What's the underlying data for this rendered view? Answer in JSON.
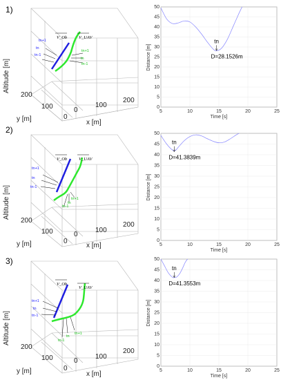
{
  "panel_labels": [
    "1)",
    "2)",
    "3)"
  ],
  "plot3d": {
    "zlabel": "Altitude [m]",
    "ylabel": "y [m]",
    "xlabel": "x [m]",
    "y_ticks": [
      "200",
      "100",
      "0"
    ],
    "x_ticks": [
      "0",
      "100",
      "200"
    ],
    "vec_ob": "V_Ob",
    "vec_uav": "V_UAV",
    "ob_labels": [
      "tn+1",
      "tn",
      "tn-1"
    ],
    "uav_labels": [
      "tn+1",
      "tn",
      "tn-1"
    ],
    "colors": {
      "obstacle": "#1f1fe0",
      "uav": "#2ee82e"
    }
  },
  "chart_data": [
    {
      "type": "line",
      "xlabel": "Time [s]",
      "ylabel": "Distance [m]",
      "xlim": [
        5,
        25
      ],
      "ylim": [
        0,
        50
      ],
      "xticks": [
        5,
        10,
        15,
        20,
        25
      ],
      "yticks": [
        0,
        5,
        10,
        15,
        20,
        25,
        30,
        35,
        40,
        45,
        50
      ],
      "x": [
        5,
        6,
        7,
        8,
        9,
        10,
        11,
        12,
        13,
        14,
        14.6,
        15.5,
        16.5,
        17.5,
        18.5,
        19
      ],
      "y": [
        49.5,
        44,
        41.7,
        42,
        43,
        42.5,
        40,
        36.5,
        32.5,
        29,
        28.15,
        29.5,
        34,
        40.5,
        47,
        50
      ],
      "annotation": {
        "marker": "tn",
        "text": "D=28.1526m",
        "x": 14.6,
        "y": 28.1526
      },
      "color": "#8585ff"
    },
    {
      "type": "line",
      "xlabel": "Time [s]",
      "ylabel": "Distance [m]",
      "xlim": [
        5,
        25
      ],
      "ylim": [
        0,
        50
      ],
      "xticks": [
        5,
        10,
        15,
        20,
        25
      ],
      "yticks": [
        0,
        5,
        10,
        15,
        20,
        25,
        30,
        35,
        40,
        45,
        50
      ],
      "x": [
        5,
        6,
        7,
        7.5,
        8,
        9,
        10,
        11,
        12,
        13,
        14,
        15,
        16,
        17,
        18,
        18.5
      ],
      "y": [
        49,
        45,
        42.2,
        42,
        43.5,
        46.5,
        48.5,
        49.3,
        48.8,
        47.5,
        46.3,
        45.6,
        46,
        47.5,
        49.3,
        50
      ],
      "annotation": {
        "marker": "tn",
        "text": "D=41.3839m",
        "x": 7.3,
        "y": 41.3839
      },
      "color": "#8585ff"
    },
    {
      "type": "line",
      "xlabel": "Time [s]",
      "ylabel": "Distance [m]",
      "xlim": [
        5,
        25
      ],
      "ylim": [
        0,
        50
      ],
      "xticks": [
        5,
        10,
        15,
        20,
        25
      ],
      "yticks": [
        0,
        5,
        10,
        15,
        20,
        25,
        30,
        35,
        40,
        45,
        50
      ],
      "x": [
        5,
        5.6,
        6.3,
        7,
        7.3,
        7.7,
        8.2,
        8.7,
        9.2,
        9.6
      ],
      "y": [
        50,
        47,
        43.5,
        41.5,
        41.36,
        41.6,
        43,
        45.5,
        48.5,
        50
      ],
      "annotation": {
        "marker": "tn",
        "text": "D=41.3553m",
        "x": 7.3,
        "y": 41.3553
      },
      "color": "#8585ff"
    }
  ]
}
